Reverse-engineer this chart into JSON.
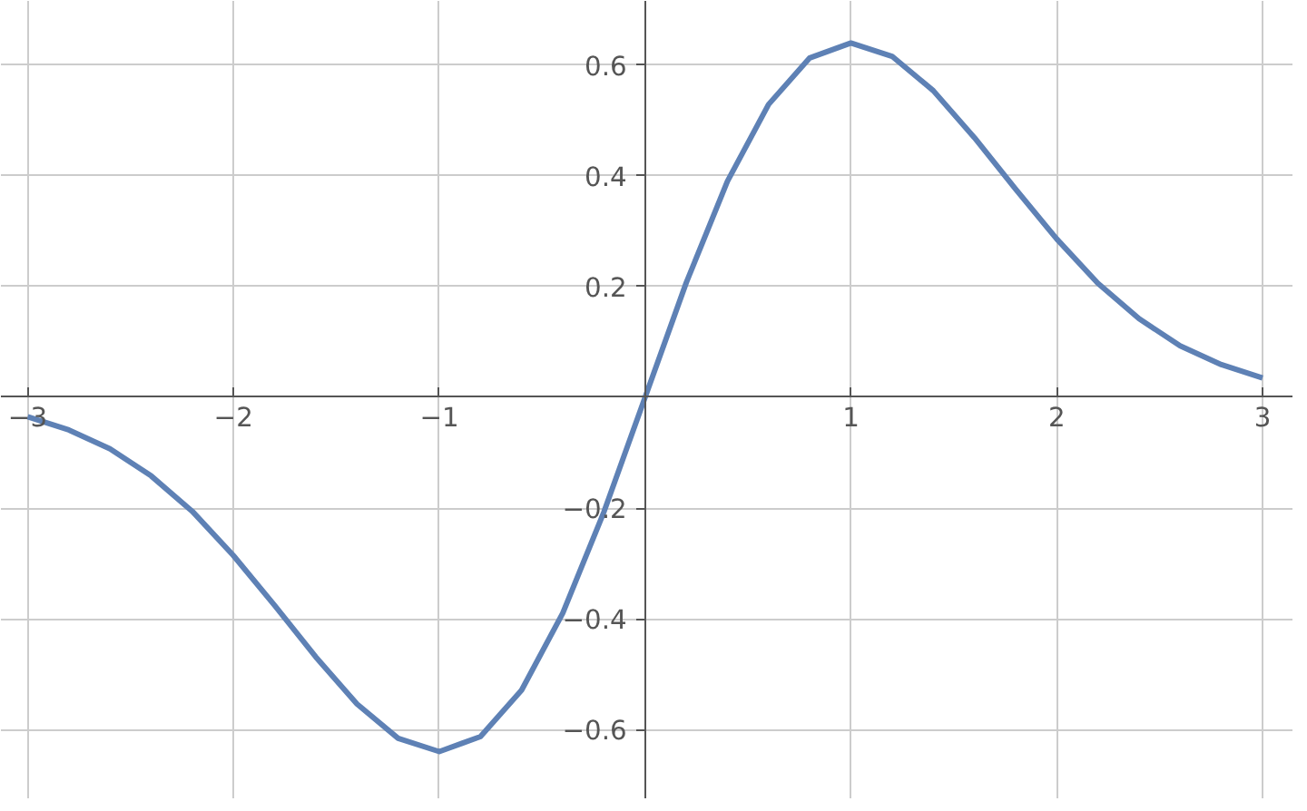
{
  "chart_data": {
    "type": "line",
    "x": [
      -3,
      -2.8,
      -2.6,
      -2.4,
      -2.2,
      -2,
      -1.8,
      -1.6,
      -1.4,
      -1.2,
      -1,
      -0.8,
      -0.6,
      -0.4,
      -0.2,
      0,
      0.2,
      0.4,
      0.6,
      0.8,
      1,
      1.2,
      1.4,
      1.6,
      1.8,
      2,
      2.2,
      2.4,
      2.6,
      2.8,
      3
    ],
    "series": [
      {
        "color": "#5e81b5",
        "values": [
          -0.035,
          -0.059,
          -0.093,
          -0.142,
          -0.206,
          -0.286,
          -0.376,
          -0.469,
          -0.554,
          -0.616,
          -0.64,
          -0.613,
          -0.529,
          -0.39,
          -0.207,
          0,
          0.207,
          0.39,
          0.529,
          0.613,
          0.64,
          0.616,
          0.554,
          0.469,
          0.376,
          0.286,
          0.206,
          0.142,
          0.093,
          0.059,
          0.035
        ]
      }
    ],
    "xlim": [
      -3.13,
      3.15
    ],
    "ylim": [
      -0.726,
      0.716
    ],
    "xticks": [
      -3,
      -2,
      -1,
      1,
      2,
      3
    ],
    "yticks": [
      -0.6,
      -0.4,
      -0.2,
      0.2,
      0.4,
      0.6
    ],
    "grid": true,
    "marker": "none",
    "line_style": "solid"
  }
}
